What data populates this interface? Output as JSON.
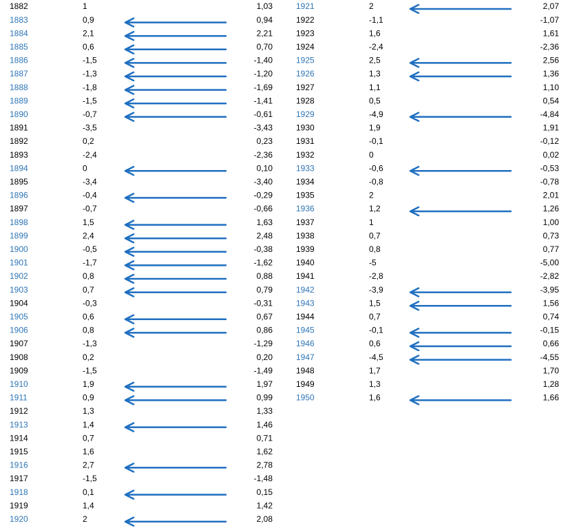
{
  "columns": [
    {
      "rows": [
        {
          "year": "1882",
          "a": "1",
          "b": "1,03",
          "arrow": false
        },
        {
          "year": "1883",
          "a": "0,9",
          "b": "0,94",
          "arrow": true
        },
        {
          "year": "1884",
          "a": "2,1",
          "b": "2,21",
          "arrow": true
        },
        {
          "year": "1885",
          "a": "0,6",
          "b": "0,70",
          "arrow": true
        },
        {
          "year": "1886",
          "a": "-1,5",
          "b": "-1,40",
          "arrow": true
        },
        {
          "year": "1887",
          "a": "-1,3",
          "b": "-1,20",
          "arrow": true
        },
        {
          "year": "1888",
          "a": "-1,8",
          "b": "-1,69",
          "arrow": true
        },
        {
          "year": "1889",
          "a": "-1,5",
          "b": "-1,41",
          "arrow": true
        },
        {
          "year": "1890",
          "a": "-0,7",
          "b": "-0,61",
          "arrow": true
        },
        {
          "year": "1891",
          "a": "-3,5",
          "b": "-3,43",
          "arrow": false
        },
        {
          "year": "1892",
          "a": "0,2",
          "b": "0,23",
          "arrow": false
        },
        {
          "year": "1893",
          "a": "-2,4",
          "b": "-2,36",
          "arrow": false
        },
        {
          "year": "1894",
          "a": "0",
          "b": "0,10",
          "arrow": true
        },
        {
          "year": "1895",
          "a": "-3,4",
          "b": "-3,40",
          "arrow": false
        },
        {
          "year": "1896",
          "a": "-0,4",
          "b": "-0,29",
          "arrow": true
        },
        {
          "year": "1897",
          "a": "-0,7",
          "b": "-0,66",
          "arrow": false
        },
        {
          "year": "1898",
          "a": "1,5",
          "b": "1,63",
          "arrow": true
        },
        {
          "year": "1899",
          "a": "2,4",
          "b": "2,48",
          "arrow": true
        },
        {
          "year": "1900",
          "a": "-0,5",
          "b": "-0,38",
          "arrow": true
        },
        {
          "year": "1901",
          "a": "-1,7",
          "b": "-1,62",
          "arrow": true
        },
        {
          "year": "1902",
          "a": "0,8",
          "b": "0,88",
          "arrow": true
        },
        {
          "year": "1903",
          "a": "0,7",
          "b": "0,79",
          "arrow": true
        },
        {
          "year": "1904",
          "a": "-0,3",
          "b": "-0,31",
          "arrow": false
        },
        {
          "year": "1905",
          "a": "0,6",
          "b": "0,67",
          "arrow": true
        },
        {
          "year": "1906",
          "a": "0,8",
          "b": "0,86",
          "arrow": true
        },
        {
          "year": "1907",
          "a": "-1,3",
          "b": "-1,29",
          "arrow": false
        },
        {
          "year": "1908",
          "a": "0,2",
          "b": "0,20",
          "arrow": false
        },
        {
          "year": "1909",
          "a": "-1,5",
          "b": "-1,49",
          "arrow": false
        },
        {
          "year": "1910",
          "a": "1,9",
          "b": "1,97",
          "arrow": true
        },
        {
          "year": "1911",
          "a": "0,9",
          "b": "0,99",
          "arrow": true
        },
        {
          "year": "1912",
          "a": "1,3",
          "b": "1,33",
          "arrow": false
        },
        {
          "year": "1913",
          "a": "1,4",
          "b": "1,46",
          "arrow": true
        },
        {
          "year": "1914",
          "a": "0,7",
          "b": "0,71",
          "arrow": false
        },
        {
          "year": "1915",
          "a": "1,6",
          "b": "1,62",
          "arrow": false
        },
        {
          "year": "1916",
          "a": "2,7",
          "b": "2,78",
          "arrow": true
        },
        {
          "year": "1917",
          "a": "-1,5",
          "b": "-1,48",
          "arrow": false
        },
        {
          "year": "1918",
          "a": "0,1",
          "b": "0,15",
          "arrow": true
        },
        {
          "year": "1919",
          "a": "1,4",
          "b": "1,42",
          "arrow": false
        },
        {
          "year": "1920",
          "a": "2",
          "b": "2,08",
          "arrow": true
        }
      ]
    },
    {
      "rows": [
        {
          "year": "1921",
          "a": "2",
          "b": "2,07",
          "arrow": true
        },
        {
          "year": "1922",
          "a": "-1,1",
          "b": "-1,07",
          "arrow": false
        },
        {
          "year": "1923",
          "a": "1,6",
          "b": "1,61",
          "arrow": false
        },
        {
          "year": "1924",
          "a": "-2,4",
          "b": "-2,36",
          "arrow": false
        },
        {
          "year": "1925",
          "a": "2,5",
          "b": "2,56",
          "arrow": true
        },
        {
          "year": "1926",
          "a": "1,3",
          "b": "1,36",
          "arrow": true
        },
        {
          "year": "1927",
          "a": "1,1",
          "b": "1,10",
          "arrow": false
        },
        {
          "year": "1928",
          "a": "0,5",
          "b": "0,54",
          "arrow": false
        },
        {
          "year": "1929",
          "a": "-4,9",
          "b": "-4,84",
          "arrow": true
        },
        {
          "year": "1930",
          "a": "1,9",
          "b": "1,91",
          "arrow": false
        },
        {
          "year": "1931",
          "a": "-0,1",
          "b": "-0,12",
          "arrow": false
        },
        {
          "year": "1932",
          "a": "0",
          "b": "0,02",
          "arrow": false
        },
        {
          "year": "1933",
          "a": "-0,6",
          "b": "-0,53",
          "arrow": true
        },
        {
          "year": "1934",
          "a": "-0,8",
          "b": "-0,78",
          "arrow": false
        },
        {
          "year": "1935",
          "a": "2",
          "b": "2,01",
          "arrow": false
        },
        {
          "year": "1936",
          "a": "1,2",
          "b": "1,26",
          "arrow": true
        },
        {
          "year": "1937",
          "a": "1",
          "b": "1,00",
          "arrow": false
        },
        {
          "year": "1938",
          "a": "0,7",
          "b": "0,73",
          "arrow": false
        },
        {
          "year": "1939",
          "a": "0,8",
          "b": "0,77",
          "arrow": false
        },
        {
          "year": "1940",
          "a": "-5",
          "b": "-5,00",
          "arrow": false
        },
        {
          "year": "1941",
          "a": "-2,8",
          "b": "-2,82",
          "arrow": false
        },
        {
          "year": "1942",
          "a": "-3,9",
          "b": "-3,95",
          "arrow": true
        },
        {
          "year": "1943",
          "a": "1,5",
          "b": "1,56",
          "arrow": true
        },
        {
          "year": "1944",
          "a": "0,7",
          "b": "0,74",
          "arrow": false
        },
        {
          "year": "1945",
          "a": "-0,1",
          "b": "-0,15",
          "arrow": true
        },
        {
          "year": "1946",
          "a": "0,6",
          "b": "0,66",
          "arrow": true
        },
        {
          "year": "1947",
          "a": "-4,5",
          "b": "-4,55",
          "arrow": true
        },
        {
          "year": "1948",
          "a": "1,7",
          "b": "1,70",
          "arrow": false
        },
        {
          "year": "1949",
          "a": "1,3",
          "b": "1,28",
          "arrow": false
        },
        {
          "year": "1950",
          "a": "1,6",
          "b": "1,66",
          "arrow": true
        }
      ]
    }
  ]
}
